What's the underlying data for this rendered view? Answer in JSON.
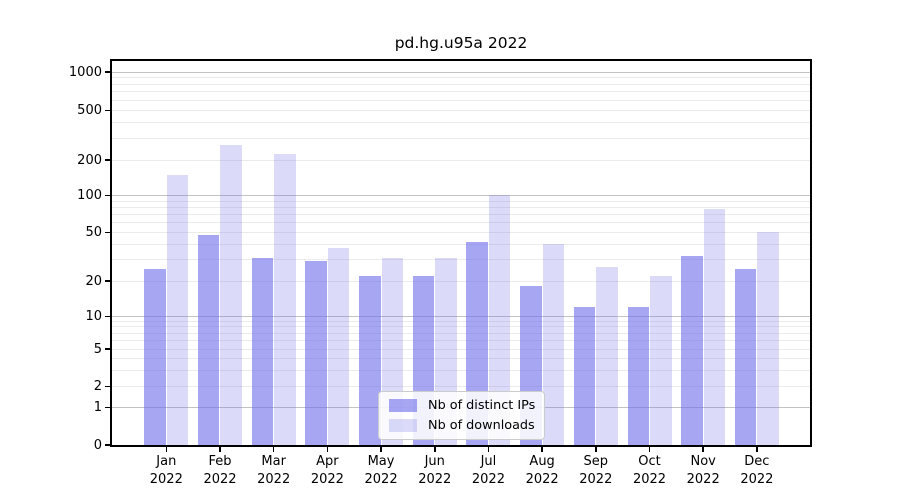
{
  "window": {
    "title": "pd.hg.u95a 2022"
  },
  "chart_data": {
    "type": "bar",
    "title": "pd.hg.u95a 2022",
    "categories": [
      "Jan 2022",
      "Feb 2022",
      "Mar 2022",
      "Apr 2022",
      "May 2022",
      "Jun 2022",
      "Jul 2022",
      "Aug 2022",
      "Sep 2022",
      "Oct 2022",
      "Nov 2022",
      "Dec 2022"
    ],
    "x_tick_months": [
      "Jan",
      "Feb",
      "Mar",
      "Apr",
      "May",
      "Jun",
      "Jul",
      "Aug",
      "Sep",
      "Oct",
      "Nov",
      "Dec"
    ],
    "x_tick_year": "2022",
    "series": [
      {
        "name": "Nb of distinct IPs",
        "values": [
          25,
          48,
          31,
          29,
          22,
          22,
          42,
          18,
          12,
          12,
          32,
          25
        ]
      },
      {
        "name": "Nb of downloads",
        "values": [
          150,
          262,
          225,
          37,
          31,
          31,
          101,
          40,
          26,
          22,
          78,
          50
        ]
      }
    ],
    "yscale": "symlog",
    "yticks": [
      0,
      1,
      2,
      5,
      10,
      20,
      50,
      100,
      200,
      500,
      1000
    ],
    "ytick_labels": [
      "0",
      "1",
      "2",
      "5",
      "10",
      "20",
      "50",
      "100",
      "200",
      "500",
      "1000"
    ],
    "ylim": [
      0,
      1000
    ],
    "xlabel": "",
    "ylabel": "",
    "grid": "both",
    "legend_position": "lower-center"
  },
  "legend": {
    "items": [
      {
        "label": "Nb of distinct IPs"
      },
      {
        "label": "Nb of downloads"
      }
    ]
  },
  "colors": {
    "ips_bar": "rgba(110,110,233,0.61)",
    "downloads_bar": "rgba(110,110,233,0.25)",
    "grid_major": "#c3c3c3",
    "grid_minor": "#ebebeb",
    "spine": "#000000",
    "legend_border": "#cccccc"
  }
}
